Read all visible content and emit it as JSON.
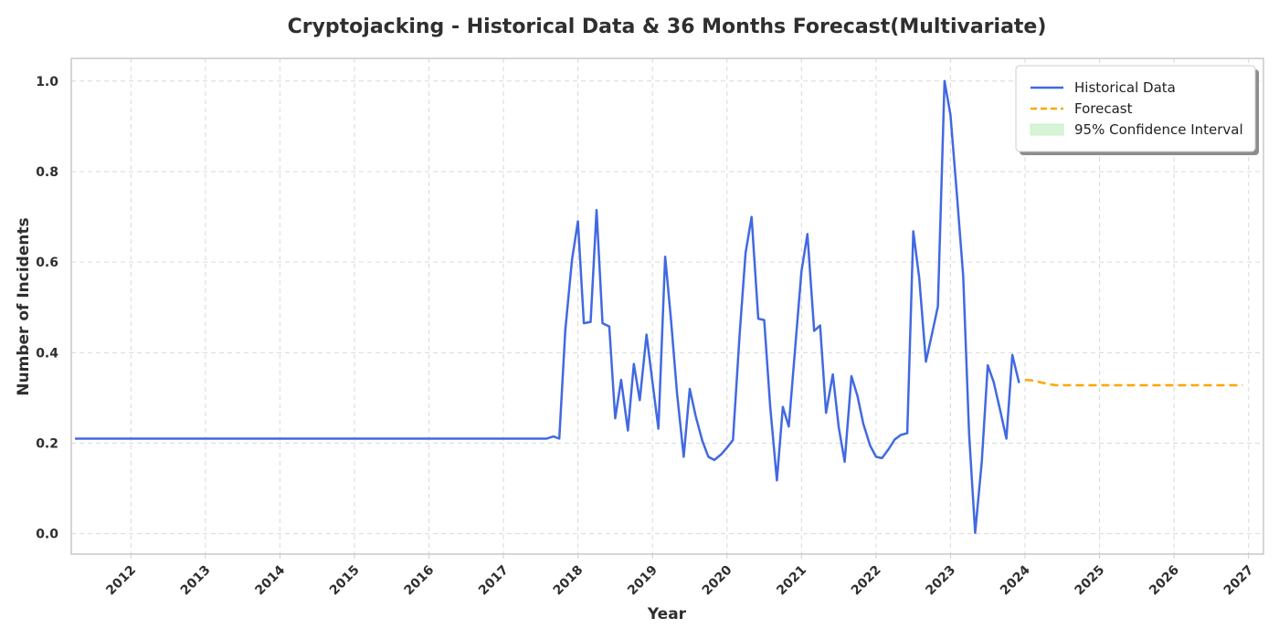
{
  "chart_data": {
    "type": "line",
    "title": "Cryptojacking - Historical Data & 36 Months Forecast(Multivariate)",
    "xlabel": "Year",
    "ylabel": "Number of Incidents",
    "xlim": [
      2011.2,
      2027.2
    ],
    "ylim": [
      -0.045,
      1.05
    ],
    "x_ticks": [
      "2012",
      "2013",
      "2014",
      "2015",
      "2016",
      "2017",
      "2018",
      "2019",
      "2020",
      "2021",
      "2022",
      "2023",
      "2024",
      "2025",
      "2026",
      "2027"
    ],
    "y_ticks": [
      "0.0",
      "0.2",
      "0.4",
      "0.6",
      "0.8",
      "1.0"
    ],
    "grid": true,
    "legend_position": "top-right",
    "legend": [
      {
        "label": "Historical Data",
        "style": "solid-line",
        "color": "#4169E1"
      },
      {
        "label": "Forecast",
        "style": "dashed-line",
        "color": "#FFA500"
      },
      {
        "label": "95% Confidence Interval",
        "style": "fill",
        "color": "#d6f5d6"
      }
    ],
    "series": [
      {
        "name": "Historical Data",
        "color": "#4169E1",
        "x": [
          2011.25,
          2017.5,
          2017.58,
          2017.67,
          2017.75,
          2017.83,
          2017.92,
          2018.0,
          2018.08,
          2018.17,
          2018.25,
          2018.33,
          2018.42,
          2018.5,
          2018.58,
          2018.67,
          2018.75,
          2018.83,
          2018.92,
          2019.0,
          2019.08,
          2019.17,
          2019.25,
          2019.33,
          2019.42,
          2019.5,
          2019.58,
          2019.67,
          2019.75,
          2019.83,
          2019.92,
          2020.0,
          2020.08,
          2020.17,
          2020.25,
          2020.33,
          2020.42,
          2020.5,
          2020.58,
          2020.67,
          2020.75,
          2020.83,
          2020.92,
          2021.0,
          2021.08,
          2021.17,
          2021.25,
          2021.33,
          2021.42,
          2021.5,
          2021.58,
          2021.67,
          2021.75,
          2021.83,
          2021.92,
          2022.0,
          2022.08,
          2022.17,
          2022.25,
          2022.33,
          2022.42,
          2022.5,
          2022.58,
          2022.67,
          2022.75,
          2022.83,
          2022.92,
          2023.0,
          2023.08,
          2023.17,
          2023.25,
          2023.33,
          2023.42,
          2023.5,
          2023.58,
          2023.67,
          2023.75,
          2023.83,
          2023.92
        ],
        "values": [
          0.21,
          0.21,
          0.21,
          0.215,
          0.21,
          0.45,
          0.605,
          0.69,
          0.465,
          0.468,
          0.715,
          0.465,
          0.458,
          0.255,
          0.34,
          0.228,
          0.375,
          0.295,
          0.44,
          0.335,
          0.232,
          0.612,
          0.47,
          0.31,
          0.17,
          0.32,
          0.26,
          0.205,
          0.17,
          0.163,
          0.175,
          0.19,
          0.207,
          0.44,
          0.62,
          0.7,
          0.475,
          0.472,
          0.28,
          0.118,
          0.28,
          0.237,
          0.42,
          0.58,
          0.662,
          0.448,
          0.46,
          0.267,
          0.352,
          0.235,
          0.159,
          0.348,
          0.305,
          0.243,
          0.195,
          0.17,
          0.167,
          0.187,
          0.208,
          0.218,
          0.222,
          0.668,
          0.565,
          0.38,
          0.44,
          0.502,
          1.0,
          0.925,
          0.76,
          0.57,
          0.22,
          0.002,
          0.16,
          0.372,
          0.335,
          0.27,
          0.21,
          0.395,
          0.333
        ]
      },
      {
        "name": "Forecast",
        "color": "#FFA500",
        "x": [
          2024.0,
          2024.08,
          2024.17,
          2024.25,
          2024.33,
          2024.42,
          2024.5,
          2024.67,
          2024.83,
          2025.0,
          2025.5,
          2026.0,
          2026.5,
          2026.92
        ],
        "values": [
          0.34,
          0.339,
          0.336,
          0.333,
          0.33,
          0.328,
          0.328,
          0.328,
          0.328,
          0.328,
          0.328,
          0.328,
          0.328,
          0.328
        ]
      }
    ]
  }
}
